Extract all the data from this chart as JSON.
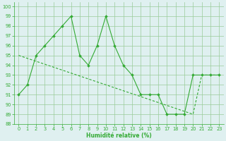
{
  "x_data": [
    0,
    1,
    2,
    3,
    4,
    5,
    6,
    7,
    8,
    9,
    10,
    11,
    12,
    13,
    14,
    15,
    16,
    17,
    18,
    19,
    20,
    21,
    22,
    23
  ],
  "y_main": [
    91,
    92,
    95,
    96,
    97,
    98,
    99,
    95,
    94,
    96,
    99,
    96,
    94,
    93,
    91,
    91,
    91,
    89,
    89,
    89,
    93,
    93,
    93,
    93
  ],
  "y_trend": [
    95.0,
    94.7,
    94.4,
    94.1,
    93.8,
    93.5,
    93.2,
    92.9,
    92.6,
    92.3,
    92.0,
    91.7,
    91.4,
    91.1,
    90.8,
    90.5,
    90.2,
    89.9,
    89.6,
    89.3,
    89.0,
    93.0,
    93.0,
    93.0
  ],
  "bg_color": "#dff0f0",
  "grid_color": "#99cc99",
  "line_color": "#33aa33",
  "xlabel": "Humidité relative (%)",
  "xlim": [
    -0.5,
    23.5
  ],
  "ylim": [
    88,
    100.4
  ],
  "yticks": [
    88,
    89,
    90,
    91,
    92,
    93,
    94,
    95,
    96,
    97,
    98,
    99,
    100
  ],
  "xticks": [
    0,
    1,
    2,
    3,
    4,
    5,
    6,
    7,
    8,
    9,
    10,
    11,
    12,
    13,
    14,
    15,
    16,
    17,
    18,
    19,
    20,
    21,
    22,
    23
  ],
  "fig_width": 3.2,
  "fig_height": 2.0,
  "dpi": 100
}
